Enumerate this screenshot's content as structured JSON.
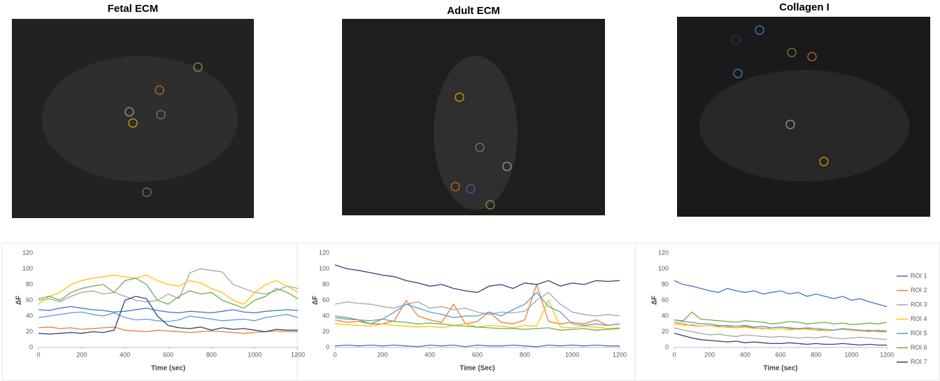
{
  "images": [
    {
      "title": "Fetal ECM"
    },
    {
      "title": "Adult ECM"
    },
    {
      "title": "Collagen I"
    }
  ],
  "chart_data": [
    {
      "type": "line",
      "xlabel": "Time (sec)",
      "ylabel": "ΔF",
      "xlim": [
        0,
        1200
      ],
      "ylim": [
        0,
        120
      ],
      "xticks": [
        0,
        200,
        400,
        600,
        800,
        1000,
        1200
      ],
      "yticks": [
        0,
        20,
        40,
        60,
        80,
        100,
        120
      ],
      "grid": false,
      "x": [
        0,
        50,
        100,
        150,
        200,
        250,
        300,
        350,
        400,
        450,
        500,
        550,
        600,
        650,
        700,
        750,
        800,
        850,
        900,
        950,
        1000,
        1050,
        1100,
        1150,
        1200
      ],
      "series": [
        {
          "color": "#4472c4",
          "values": [
            48,
            47,
            50,
            52,
            50,
            48,
            47,
            45,
            46,
            48,
            50,
            47,
            45,
            44,
            46,
            45,
            44,
            46,
            48,
            45,
            44,
            46,
            47,
            48,
            47
          ]
        },
        {
          "color": "#ed7d31",
          "values": [
            25,
            26,
            24,
            25,
            23,
            24,
            25,
            26,
            22,
            21,
            20,
            22,
            21,
            20,
            19,
            20,
            21,
            20,
            19,
            18,
            19,
            20,
            21,
            20,
            20
          ]
        },
        {
          "color": "#a5a5a5",
          "values": [
            60,
            62,
            58,
            65,
            70,
            72,
            68,
            70,
            65,
            60,
            58,
            60,
            68,
            62,
            95,
            100,
            98,
            96,
            80,
            75,
            70,
            68,
            72,
            78,
            75
          ]
        },
        {
          "color": "#ffc000",
          "values": [
            55,
            65,
            70,
            80,
            85,
            88,
            90,
            92,
            90,
            88,
            92,
            85,
            80,
            78,
            85,
            82,
            75,
            70,
            60,
            55,
            70,
            80,
            85,
            78,
            70
          ]
        },
        {
          "color": "#5b9bd5",
          "values": [
            38,
            40,
            42,
            44,
            45,
            42,
            40,
            44,
            38,
            35,
            36,
            34,
            33,
            35,
            40,
            38,
            36,
            34,
            35,
            36,
            34,
            38,
            40,
            42,
            38
          ]
        },
        {
          "color": "#70ad47",
          "values": [
            62,
            65,
            60,
            70,
            75,
            78,
            80,
            70,
            85,
            88,
            80,
            60,
            55,
            65,
            72,
            68,
            70,
            60,
            55,
            50,
            60,
            65,
            75,
            70,
            62
          ]
        },
        {
          "color": "#264478",
          "values": [
            18,
            17,
            18,
            19,
            18,
            20,
            19,
            22,
            60,
            65,
            62,
            40,
            28,
            25,
            24,
            26,
            22,
            25,
            23,
            24,
            22,
            20,
            23,
            22,
            22
          ]
        }
      ]
    },
    {
      "type": "line",
      "xlabel": "Time (Sec)",
      "ylabel": "ΔF",
      "xlim": [
        0,
        1200
      ],
      "ylim": [
        0,
        120
      ],
      "xticks": [
        0,
        200,
        400,
        600,
        800,
        1000,
        1200
      ],
      "yticks": [
        0,
        20,
        40,
        60,
        80,
        100,
        120
      ],
      "grid": false,
      "x": [
        0,
        50,
        100,
        150,
        200,
        250,
        300,
        350,
        400,
        450,
        500,
        550,
        600,
        650,
        700,
        750,
        800,
        850,
        900,
        950,
        1000,
        1050,
        1100,
        1150,
        1200
      ],
      "series": [
        {
          "color": "#4472c4",
          "values": [
            2,
            3,
            2,
            3,
            2,
            3,
            2,
            1,
            3,
            2,
            3,
            1,
            3,
            2,
            2,
            3,
            2,
            1,
            3,
            2,
            3,
            2,
            3,
            2,
            2
          ]
        },
        {
          "color": "#ed7d31",
          "values": [
            35,
            32,
            33,
            30,
            30,
            34,
            60,
            40,
            35,
            32,
            55,
            30,
            33,
            45,
            32,
            30,
            35,
            80,
            33,
            30,
            32,
            30,
            35,
            28,
            30
          ]
        },
        {
          "color": "#a5a5a5",
          "values": [
            55,
            58,
            56,
            55,
            52,
            50,
            55,
            58,
            50,
            52,
            48,
            50,
            45,
            42,
            45,
            44,
            46,
            60,
            70,
            55,
            45,
            42,
            40,
            42,
            40
          ]
        },
        {
          "color": "#ffc000",
          "values": [
            30,
            29,
            28,
            27,
            30,
            28,
            27,
            26,
            27,
            25,
            28,
            30,
            26,
            28,
            27,
            25,
            28,
            27,
            60,
            26,
            25,
            27,
            26,
            24,
            25
          ]
        },
        {
          "color": "#5b9bd5",
          "values": [
            40,
            38,
            35,
            30,
            36,
            45,
            55,
            50,
            45,
            42,
            38,
            40,
            40,
            45,
            40,
            48,
            55,
            70,
            52,
            45,
            30,
            28,
            30,
            28,
            30
          ]
        },
        {
          "color": "#70ad47",
          "values": [
            38,
            36,
            35,
            34,
            36,
            33,
            32,
            30,
            31,
            30,
            28,
            27,
            26,
            25,
            24,
            24,
            23,
            24,
            25,
            22,
            23,
            24,
            22,
            23,
            24
          ]
        },
        {
          "color": "#264478",
          "values": [
            105,
            100,
            98,
            95,
            92,
            90,
            85,
            82,
            78,
            80,
            75,
            72,
            70,
            78,
            80,
            75,
            82,
            80,
            85,
            78,
            82,
            80,
            85,
            84,
            85
          ]
        }
      ]
    },
    {
      "type": "line",
      "xlabel": "Time (sec)",
      "ylabel": "ΔF",
      "xlim": [
        0,
        1200
      ],
      "ylim": [
        0,
        120
      ],
      "xticks": [
        0,
        200,
        400,
        600,
        800,
        1000,
        1200
      ],
      "yticks": [
        0,
        20,
        40,
        60,
        80,
        100,
        120
      ],
      "grid": false,
      "legend": "right",
      "x": [
        0,
        50,
        100,
        150,
        200,
        250,
        300,
        350,
        400,
        450,
        500,
        550,
        600,
        650,
        700,
        750,
        800,
        850,
        900,
        950,
        1000,
        1050,
        1100,
        1150,
        1200
      ],
      "series": [
        {
          "name": "ROI 1",
          "color": "#4472c4",
          "values": [
            85,
            80,
            78,
            75,
            72,
            70,
            75,
            72,
            70,
            72,
            68,
            70,
            72,
            68,
            70,
            65,
            68,
            65,
            62,
            65,
            60,
            62,
            58,
            55,
            52
          ]
        },
        {
          "name": "ROI 2",
          "color": "#ed7d31",
          "values": [
            32,
            30,
            28,
            27,
            28,
            27,
            26,
            25,
            27,
            25,
            24,
            25,
            26,
            24,
            23,
            24,
            22,
            23,
            22,
            24,
            22,
            21,
            22,
            20,
            20
          ]
        },
        {
          "name": "ROI 3",
          "color": "#a5a5a5",
          "values": [
            25,
            22,
            20,
            18,
            16,
            17,
            15,
            14,
            16,
            15,
            14,
            13,
            14,
            13,
            12,
            13,
            12,
            14,
            12,
            11,
            12,
            13,
            12,
            11,
            10
          ]
        },
        {
          "name": "ROI 4",
          "color": "#ffc000",
          "values": [
            30,
            28,
            29,
            27,
            28,
            26,
            27,
            25,
            26,
            24,
            25,
            23,
            24,
            22,
            24,
            23,
            22,
            21,
            22,
            23,
            22,
            21,
            20,
            21,
            22
          ]
        },
        {
          "name": "ROI 5",
          "color": "#5b9bd5",
          "values": [
            35,
            33,
            32,
            30,
            30,
            28,
            28,
            27,
            28,
            26,
            27,
            25,
            26,
            25,
            24,
            25,
            24,
            23,
            22,
            24,
            23,
            22,
            21,
            22,
            20
          ]
        },
        {
          "name": "ROI 6",
          "color": "#70ad47",
          "values": [
            35,
            34,
            45,
            36,
            35,
            34,
            33,
            32,
            34,
            33,
            32,
            30,
            31,
            33,
            32,
            30,
            31,
            32,
            30,
            31,
            29,
            30,
            31,
            30,
            32
          ]
        },
        {
          "name": "ROI 7",
          "color": "#264478",
          "values": [
            18,
            15,
            12,
            10,
            9,
            8,
            7,
            8,
            6,
            7,
            6,
            5,
            5,
            6,
            5,
            4,
            5,
            4,
            4,
            5,
            4,
            3,
            4,
            3,
            3
          ]
        }
      ]
    }
  ]
}
